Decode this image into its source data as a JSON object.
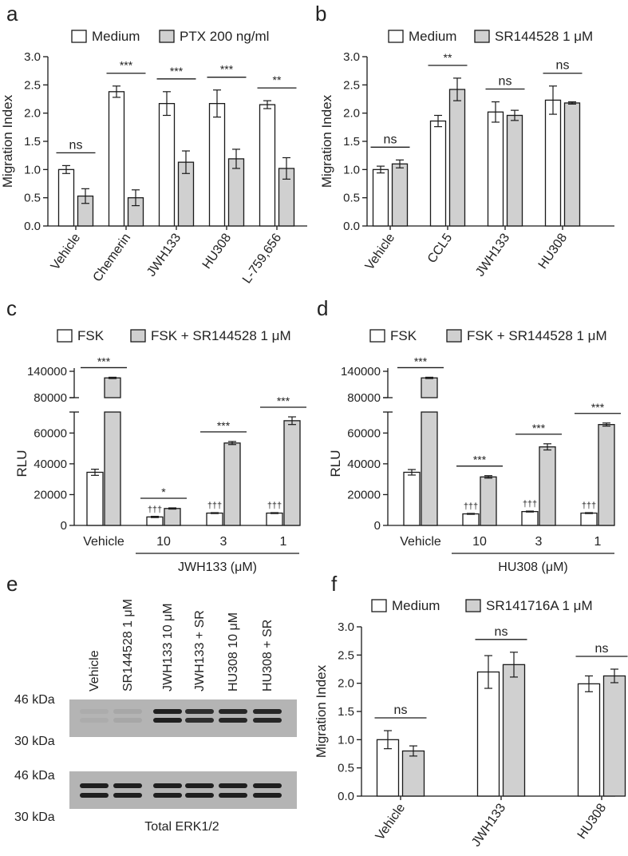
{
  "colors": {
    "medium": "#ffffff",
    "treated": "#d0d0d0",
    "stroke": "#1a1a1a",
    "band": "#1f1f1f",
    "membrane": "#b4b4b4"
  },
  "chart_data": [
    {
      "panel": "a",
      "type": "bar",
      "ylabel": "Migration Index",
      "ylim": [
        0,
        3.0
      ],
      "yticks": [
        "0.0",
        "0.5",
        "1.0",
        "1.5",
        "2.0",
        "2.5",
        "3.0"
      ],
      "categories": [
        "Vehicle",
        "Chemerin",
        "JWH133",
        "HU308",
        "L-759,656"
      ],
      "series": [
        {
          "name": "Medium",
          "values": [
            1.0,
            2.38,
            2.17,
            2.17,
            2.15
          ],
          "errors": [
            0.07,
            0.1,
            0.21,
            0.24,
            0.07
          ]
        },
        {
          "name": "PTX 200 ng/ml",
          "values": [
            0.53,
            0.5,
            1.13,
            1.19,
            1.02
          ],
          "errors": [
            0.13,
            0.14,
            0.2,
            0.17,
            0.19
          ]
        }
      ],
      "significance": [
        "ns",
        "***",
        "***",
        "***",
        "**"
      ]
    },
    {
      "panel": "b",
      "type": "bar",
      "ylabel": "Migration Index",
      "ylim": [
        0,
        3.0
      ],
      "yticks": [
        "0.0",
        "0.5",
        "1.0",
        "1.5",
        "2.0",
        "2.5",
        "3.0"
      ],
      "categories": [
        "Vehicle",
        "CCL5",
        "JWH133",
        "HU308"
      ],
      "series": [
        {
          "name": "Medium",
          "values": [
            1.0,
            1.86,
            2.02,
            2.23
          ],
          "errors": [
            0.06,
            0.1,
            0.18,
            0.25
          ]
        },
        {
          "name": "SR144528 1 μM",
          "values": [
            1.1,
            2.42,
            1.96,
            2.18
          ],
          "errors": [
            0.07,
            0.2,
            0.09,
            0.02
          ]
        }
      ],
      "significance": [
        "ns",
        "**",
        "ns",
        "ns"
      ]
    },
    {
      "panel": "c",
      "type": "bar",
      "ylabel": "RLU",
      "yticks_lower": [
        "0",
        "20000",
        "40000",
        "60000"
      ],
      "yticks_upper": [
        "80000",
        "140000"
      ],
      "categories": [
        "Vehicle",
        "10",
        "3",
        "1"
      ],
      "group_label": "JWH133 (μM)",
      "series": [
        {
          "name": "FSK",
          "values": [
            34500,
            5500,
            8000,
            8000
          ],
          "errors": [
            2000,
            400,
            300,
            300
          ]
        },
        {
          "name": "FSK + SR144528 1 μM",
          "values": [
            125000,
            11000,
            53500,
            68000
          ],
          "errors": [
            1500,
            400,
            1000,
            2500
          ]
        }
      ],
      "significance": [
        "***",
        "*",
        "***",
        "***"
      ],
      "dagger": [
        "",
        "†††",
        "†††",
        "†††"
      ]
    },
    {
      "panel": "d",
      "type": "bar",
      "ylabel": "RLU",
      "yticks_lower": [
        "0",
        "20000",
        "40000",
        "60000"
      ],
      "yticks_upper": [
        "80000",
        "140000"
      ],
      "categories": [
        "Vehicle",
        "10",
        "3",
        "1"
      ],
      "group_label": "HU308 (μM)",
      "series": [
        {
          "name": "FSK",
          "values": [
            34500,
            7500,
            9000,
            8000
          ],
          "errors": [
            1800,
            300,
            300,
            300
          ]
        },
        {
          "name": "FSK + SR144528 1 μM",
          "values": [
            125000,
            31500,
            51000,
            65500
          ],
          "errors": [
            1500,
            800,
            2000,
            1000
          ]
        }
      ],
      "significance": [
        "***",
        "***",
        "***",
        "***"
      ],
      "dagger": [
        "",
        "†††",
        "†††",
        "†††"
      ]
    },
    {
      "panel": "f",
      "type": "bar",
      "ylabel": "Migration Index",
      "ylim": [
        0,
        3.0
      ],
      "yticks": [
        "0.0",
        "0.5",
        "1.0",
        "1.5",
        "2.0",
        "2.5",
        "3.0"
      ],
      "categories": [
        "Vehicle",
        "JWH133",
        "HU308"
      ],
      "series": [
        {
          "name": "Medium",
          "values": [
            1.0,
            2.2,
            1.99
          ],
          "errors": [
            0.16,
            0.29,
            0.14
          ]
        },
        {
          "name": "SR141716A 1 μM",
          "values": [
            0.8,
            2.33,
            2.13
          ],
          "errors": [
            0.09,
            0.22,
            0.12
          ]
        }
      ],
      "significance": [
        "ns",
        "ns",
        "ns"
      ]
    }
  ],
  "blot": {
    "panel": "e",
    "lanes": [
      "Vehicle",
      "SR144528 1 μM",
      "JWH133 10 μM",
      "JWH133 + SR",
      "HU308 10 μM",
      "HU308 + SR"
    ],
    "markers": [
      "46 kDa",
      "30 kDa",
      "46 kDa",
      "30 kDa"
    ],
    "bottom_label": "Total ERK1/2",
    "phospho_intensity": [
      0.05,
      0.08,
      1.0,
      0.9,
      0.95,
      0.95
    ],
    "total_intensity": [
      1.0,
      1.0,
      1.0,
      1.0,
      1.0,
      1.0
    ]
  },
  "letters": [
    "a",
    "b",
    "c",
    "d",
    "e",
    "f"
  ]
}
